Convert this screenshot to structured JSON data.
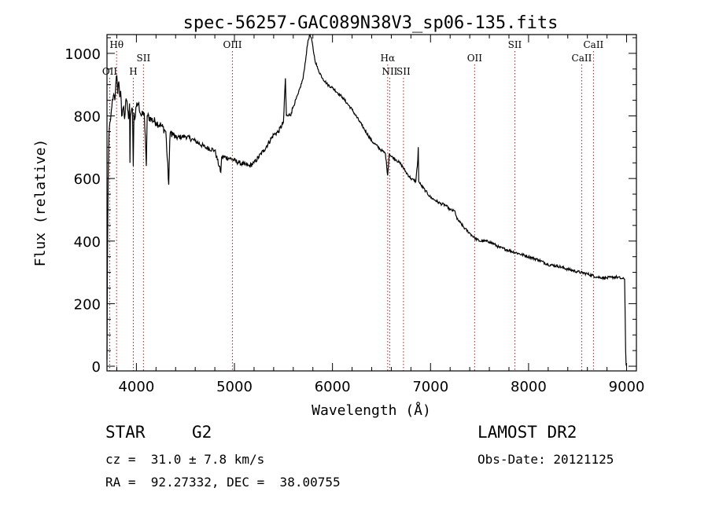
{
  "chart_data": {
    "type": "line",
    "title": "spec-56257-GAC089N38V3_sp06-135.fits",
    "xlabel": "Wavelength (Å)",
    "ylabel": "Flux (relative)",
    "xlim": [
      3700,
      9100
    ],
    "ylim": [
      -15,
      1060
    ],
    "xticks": [
      4000,
      5000,
      6000,
      7000,
      8000,
      9000
    ],
    "yticks": [
      0,
      200,
      400,
      600,
      800,
      1000
    ],
    "grid": false,
    "series": [
      {
        "name": "spectrum",
        "x": [
          3700,
          3705,
          3712,
          3720,
          3730,
          3740,
          3750,
          3760,
          3770,
          3780,
          3790,
          3800,
          3810,
          3820,
          3830,
          3840,
          3850,
          3860,
          3870,
          3880,
          3890,
          3900,
          3910,
          3920,
          3930,
          3934,
          3940,
          3950,
          3960,
          3968,
          3975,
          3985,
          4000,
          4020,
          4050,
          4080,
          4101,
          4110,
          4150,
          4200,
          4250,
          4300,
          4330,
          4340,
          4350,
          4400,
          4500,
          4600,
          4700,
          4800,
          4861,
          4870,
          4950,
          5050,
          5100,
          5150,
          5200,
          5300,
          5400,
          5450,
          5500,
          5520,
          5530,
          5550,
          5580,
          5600,
          5650,
          5700,
          5730,
          5750,
          5770,
          5790,
          5820,
          5850,
          5900,
          5950,
          6000,
          6100,
          6200,
          6300,
          6400,
          6500,
          6540,
          6563,
          6580,
          6600,
          6650,
          6700,
          6750,
          6800,
          6850,
          6870,
          6875,
          6880,
          6900,
          6950,
          7000,
          7050,
          7100,
          7150,
          7200,
          7250,
          7270,
          7300,
          7350,
          7400,
          7450,
          7500,
          7550,
          7600,
          7650,
          7700,
          7800,
          7900,
          8000,
          8100,
          8200,
          8300,
          8400,
          8500,
          8600,
          8700,
          8800,
          8850,
          8900,
          8950,
          8980,
          8990,
          8995,
          9000
        ],
        "y": [
          20,
          350,
          600,
          740,
          780,
          800,
          830,
          850,
          870,
          850,
          900,
          930,
          870,
          910,
          860,
          880,
          800,
          820,
          830,
          790,
          845,
          850,
          820,
          790,
          840,
          650,
          800,
          820,
          820,
          640,
          810,
          790,
          830,
          840,
          800,
          810,
          640,
          800,
          790,
          780,
          770,
          750,
          580,
          720,
          750,
          730,
          735,
          720,
          700,
          690,
          620,
          670,
          665,
          650,
          645,
          640,
          650,
          690,
          740,
          750,
          780,
          920,
          800,
          800,
          810,
          830,
          870,
          920,
          990,
          1040,
          1060,
          1040,
          980,
          950,
          920,
          900,
          890,
          860,
          820,
          770,
          720,
          690,
          680,
          610,
          680,
          670,
          660,
          645,
          620,
          600,
          590,
          660,
          700,
          590,
          580,
          560,
          540,
          530,
          520,
          515,
          500,
          495,
          470,
          460,
          440,
          425,
          410,
          400,
          400,
          398,
          390,
          380,
          370,
          360,
          350,
          340,
          325,
          320,
          310,
          302,
          295,
          285,
          282,
          284,
          285,
          280,
          278,
          50,
          5,
          0
        ]
      }
    ],
    "line_markers": [
      {
        "label": "Hθ",
        "wavelength": 3798,
        "row": 1
      },
      {
        "label": "OII",
        "wavelength": 3728,
        "row": 3
      },
      {
        "label": "H",
        "wavelength": 3969,
        "row": 3
      },
      {
        "label": "SII",
        "wavelength": 4072,
        "row": 2
      },
      {
        "label": "OIII",
        "wavelength": 4980,
        "row": 1
      },
      {
        "label": "Hα",
        "wavelength": 6563,
        "row": 2
      },
      {
        "label": "NII",
        "wavelength": 6584,
        "row": 3
      },
      {
        "label": "SII",
        "wavelength": 6724,
        "row": 3
      },
      {
        "label": "OII",
        "wavelength": 7450,
        "row": 2
      },
      {
        "label": "SII",
        "wavelength": 7860,
        "row": 1
      },
      {
        "label": "CaII",
        "wavelength": 8542,
        "row": 2
      },
      {
        "label": "CaII",
        "wavelength": 8662,
        "row": 1
      }
    ],
    "colors": {
      "line": "#000000",
      "marker": "#b22222"
    }
  },
  "info": {
    "object_class": "STAR",
    "subclass": "G2",
    "redshift": "cz =  31.0 ± 7.8 km/s",
    "coords": "RA =  92.27332, DEC =  38.00755",
    "survey": "LAMOST DR2",
    "obs_date": "Obs-Date: 20121125"
  }
}
